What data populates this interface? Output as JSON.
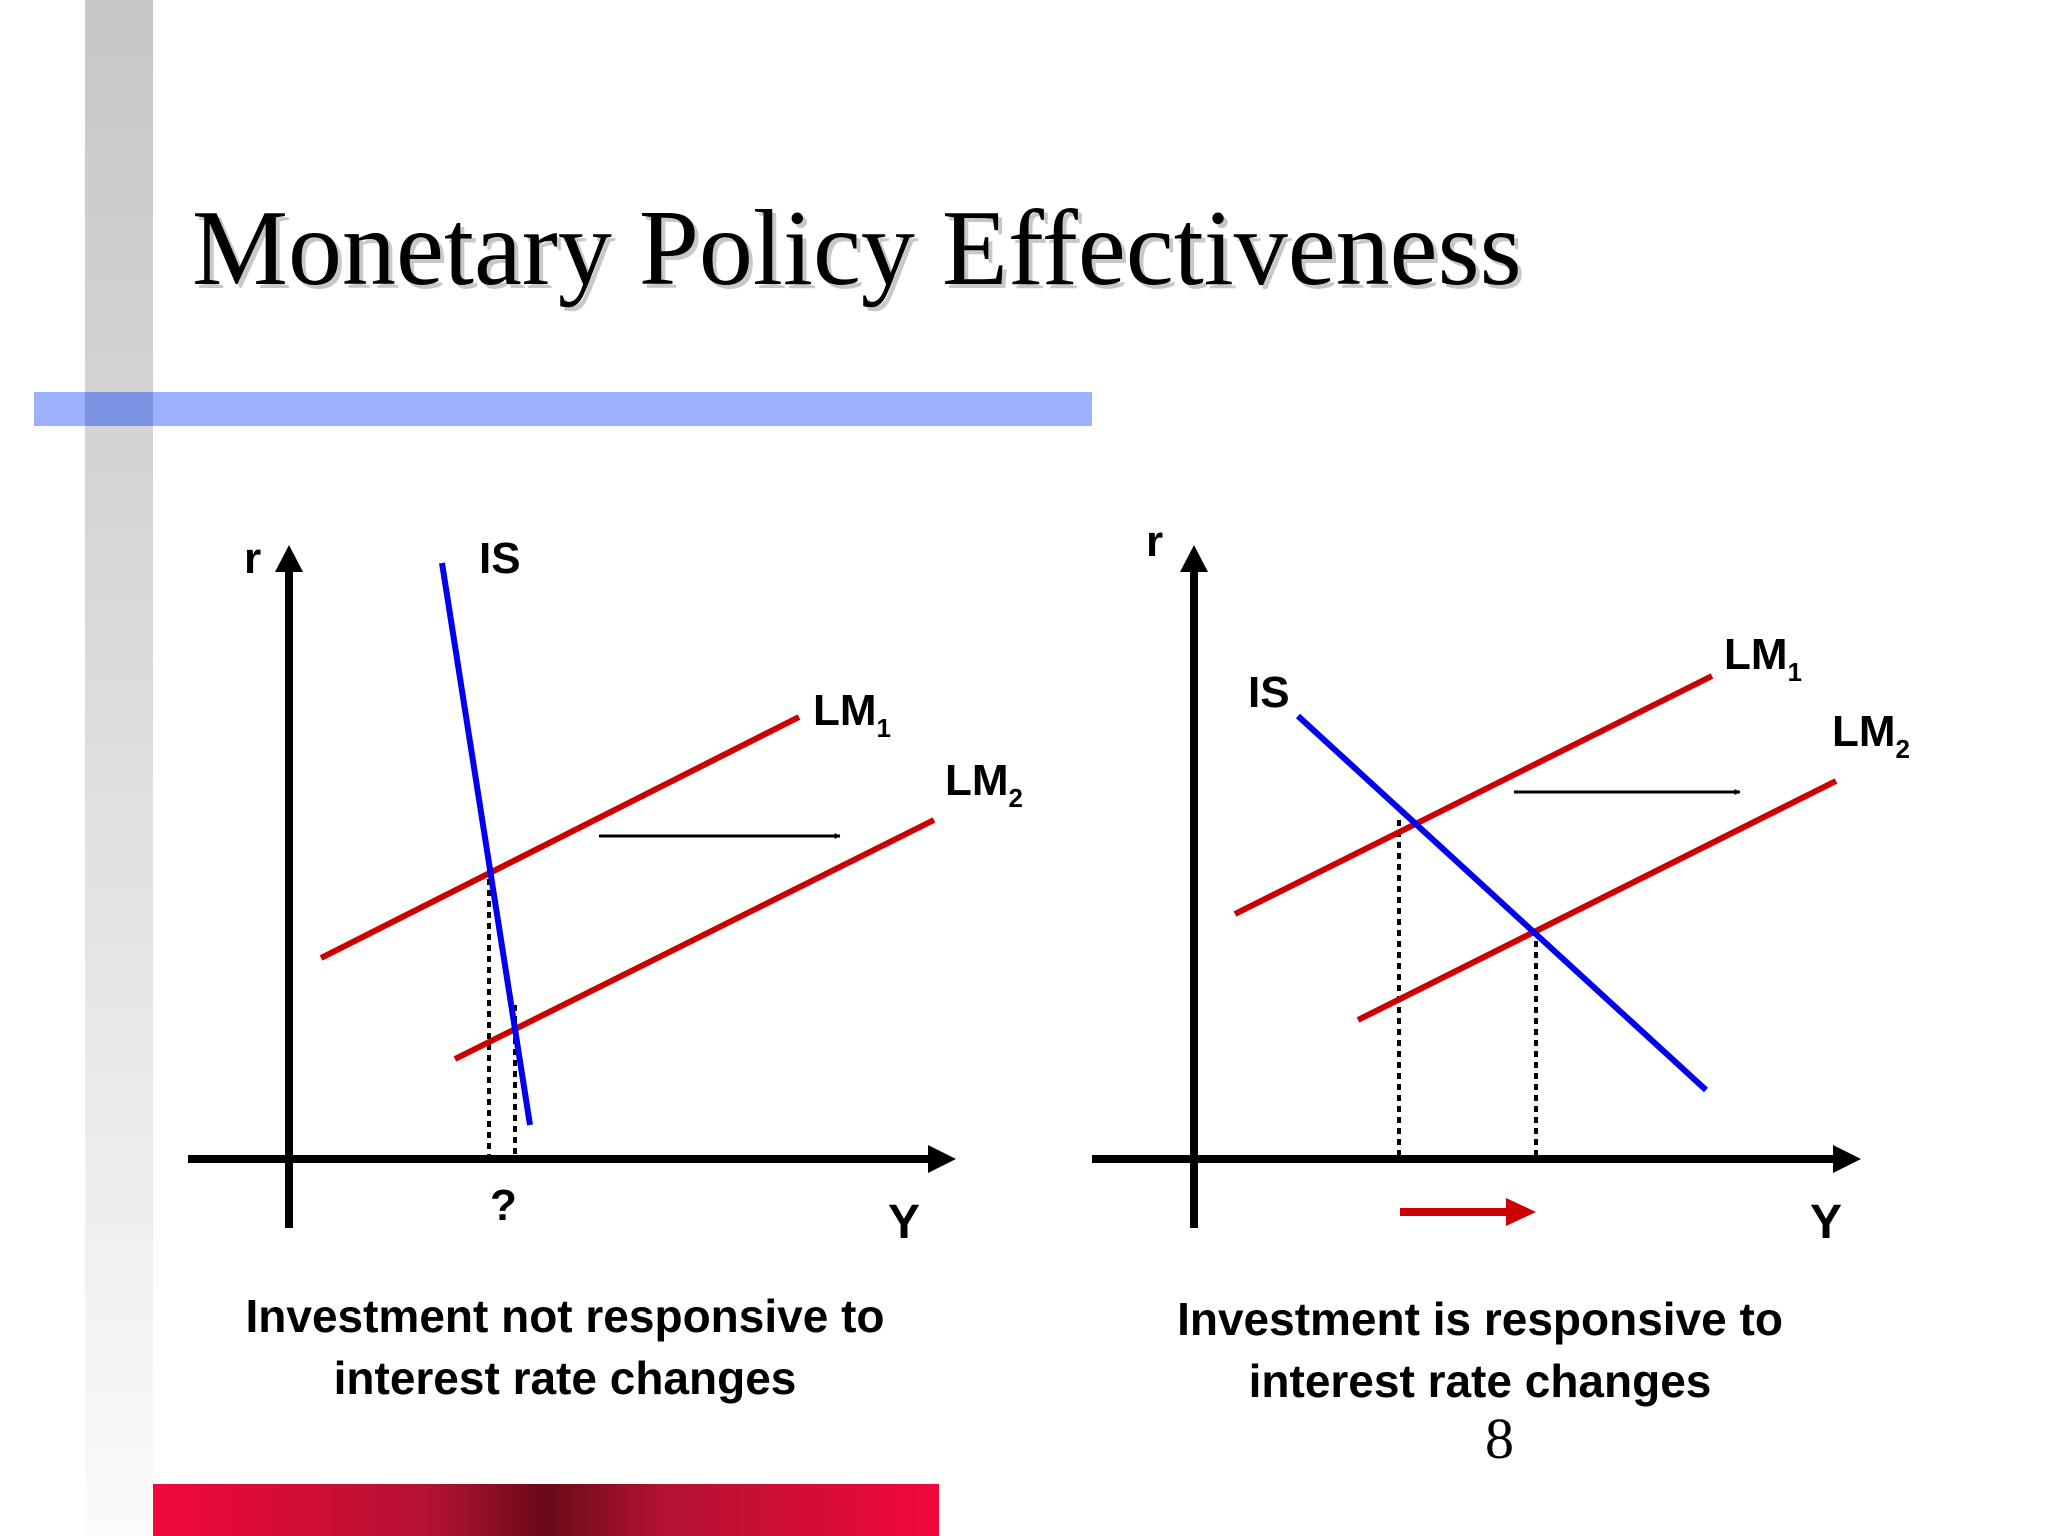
{
  "slide": {
    "title": "Monetary Policy Effectiveness",
    "page_number": "8",
    "colors": {
      "title_shadow": "#c8c8c8",
      "accent_blue_bar": "#9cb2ff",
      "accent_red_bar": "#f3073c",
      "side_bar": "#d0d0d0",
      "is_curve": "#0000ee",
      "lm_curve": "#cc0000"
    }
  },
  "left_diagram": {
    "y_axis_label": "r",
    "x_axis_label": "Y",
    "is_label": "IS",
    "lm1_label": "LM",
    "lm1_sub": "1",
    "lm2_label": "LM",
    "lm2_sub": "2",
    "change_label": "?",
    "caption_line1": "Investment not responsive to",
    "caption_line2": "interest rate changes"
  },
  "right_diagram": {
    "y_axis_label": "r",
    "x_axis_label": "Y",
    "is_label": "IS",
    "lm1_label": "LM",
    "lm1_sub": "1",
    "lm2_label": "LM",
    "lm2_sub": "2",
    "caption_line1": "Investment is responsive to",
    "caption_line2": "interest rate changes"
  }
}
